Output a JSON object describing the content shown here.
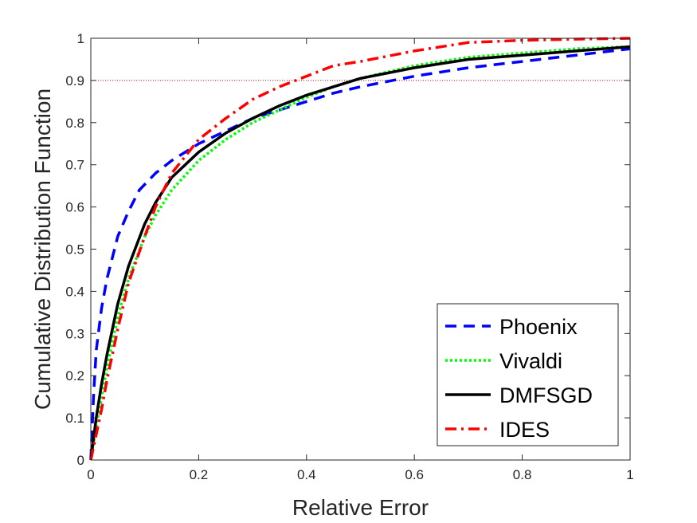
{
  "chart_data": {
    "type": "line",
    "title": "",
    "xlabel": "Relative Error",
    "ylabel": "Cumulative Distribution Function",
    "xlim": [
      0,
      1
    ],
    "ylim": [
      0,
      1
    ],
    "x_ticks": [
      "0",
      "0.2",
      "0.4",
      "0.6",
      "0.8",
      "1"
    ],
    "y_ticks": [
      "0",
      "0.1",
      "0.2",
      "0.3",
      "0.4",
      "0.5",
      "0.6",
      "0.7",
      "0.8",
      "0.9",
      "1"
    ],
    "grid": false,
    "reference_line": {
      "y": 0.9,
      "color": "#cc0000",
      "style": "dotted"
    },
    "legend_position": "bottom-right",
    "series": [
      {
        "name": "Phoenix",
        "color": "#0000ff",
        "style": "dashed",
        "x": [
          0,
          0.005,
          0.01,
          0.02,
          0.03,
          0.04,
          0.05,
          0.07,
          0.09,
          0.12,
          0.15,
          0.2,
          0.25,
          0.3,
          0.35,
          0.4,
          0.45,
          0.5,
          0.6,
          0.7,
          0.8,
          0.9,
          1.0
        ],
        "y": [
          0,
          0.15,
          0.26,
          0.36,
          0.43,
          0.48,
          0.53,
          0.59,
          0.64,
          0.68,
          0.71,
          0.75,
          0.78,
          0.81,
          0.83,
          0.85,
          0.87,
          0.885,
          0.91,
          0.93,
          0.945,
          0.96,
          0.975
        ]
      },
      {
        "name": "Vivaldi",
        "color": "#00ff00",
        "style": "dotted",
        "x": [
          0,
          0.01,
          0.02,
          0.03,
          0.05,
          0.07,
          0.1,
          0.12,
          0.15,
          0.2,
          0.25,
          0.3,
          0.35,
          0.4,
          0.45,
          0.5,
          0.6,
          0.7,
          0.8,
          0.9,
          1.0
        ],
        "y": [
          0,
          0.08,
          0.15,
          0.22,
          0.34,
          0.43,
          0.53,
          0.58,
          0.64,
          0.71,
          0.76,
          0.8,
          0.83,
          0.86,
          0.885,
          0.905,
          0.935,
          0.955,
          0.965,
          0.975,
          0.98
        ]
      },
      {
        "name": "DMFSGD",
        "color": "#000000",
        "style": "solid",
        "x": [
          0,
          0.01,
          0.02,
          0.03,
          0.05,
          0.07,
          0.1,
          0.12,
          0.15,
          0.2,
          0.25,
          0.3,
          0.35,
          0.4,
          0.45,
          0.5,
          0.6,
          0.7,
          0.8,
          0.9,
          1.0
        ],
        "y": [
          0,
          0.1,
          0.18,
          0.25,
          0.37,
          0.46,
          0.56,
          0.61,
          0.67,
          0.73,
          0.775,
          0.81,
          0.84,
          0.865,
          0.885,
          0.905,
          0.93,
          0.95,
          0.96,
          0.97,
          0.98
        ]
      },
      {
        "name": "IDES",
        "color": "#ff0000",
        "style": "dashdot",
        "x": [
          0,
          0.01,
          0.02,
          0.03,
          0.05,
          0.07,
          0.1,
          0.12,
          0.15,
          0.2,
          0.25,
          0.3,
          0.35,
          0.4,
          0.45,
          0.5,
          0.6,
          0.7,
          0.8,
          0.9,
          1.0
        ],
        "y": [
          0,
          0.06,
          0.12,
          0.19,
          0.31,
          0.42,
          0.53,
          0.6,
          0.68,
          0.76,
          0.81,
          0.855,
          0.885,
          0.91,
          0.935,
          0.945,
          0.97,
          0.99,
          0.995,
          0.998,
          1.0
        ]
      }
    ]
  }
}
